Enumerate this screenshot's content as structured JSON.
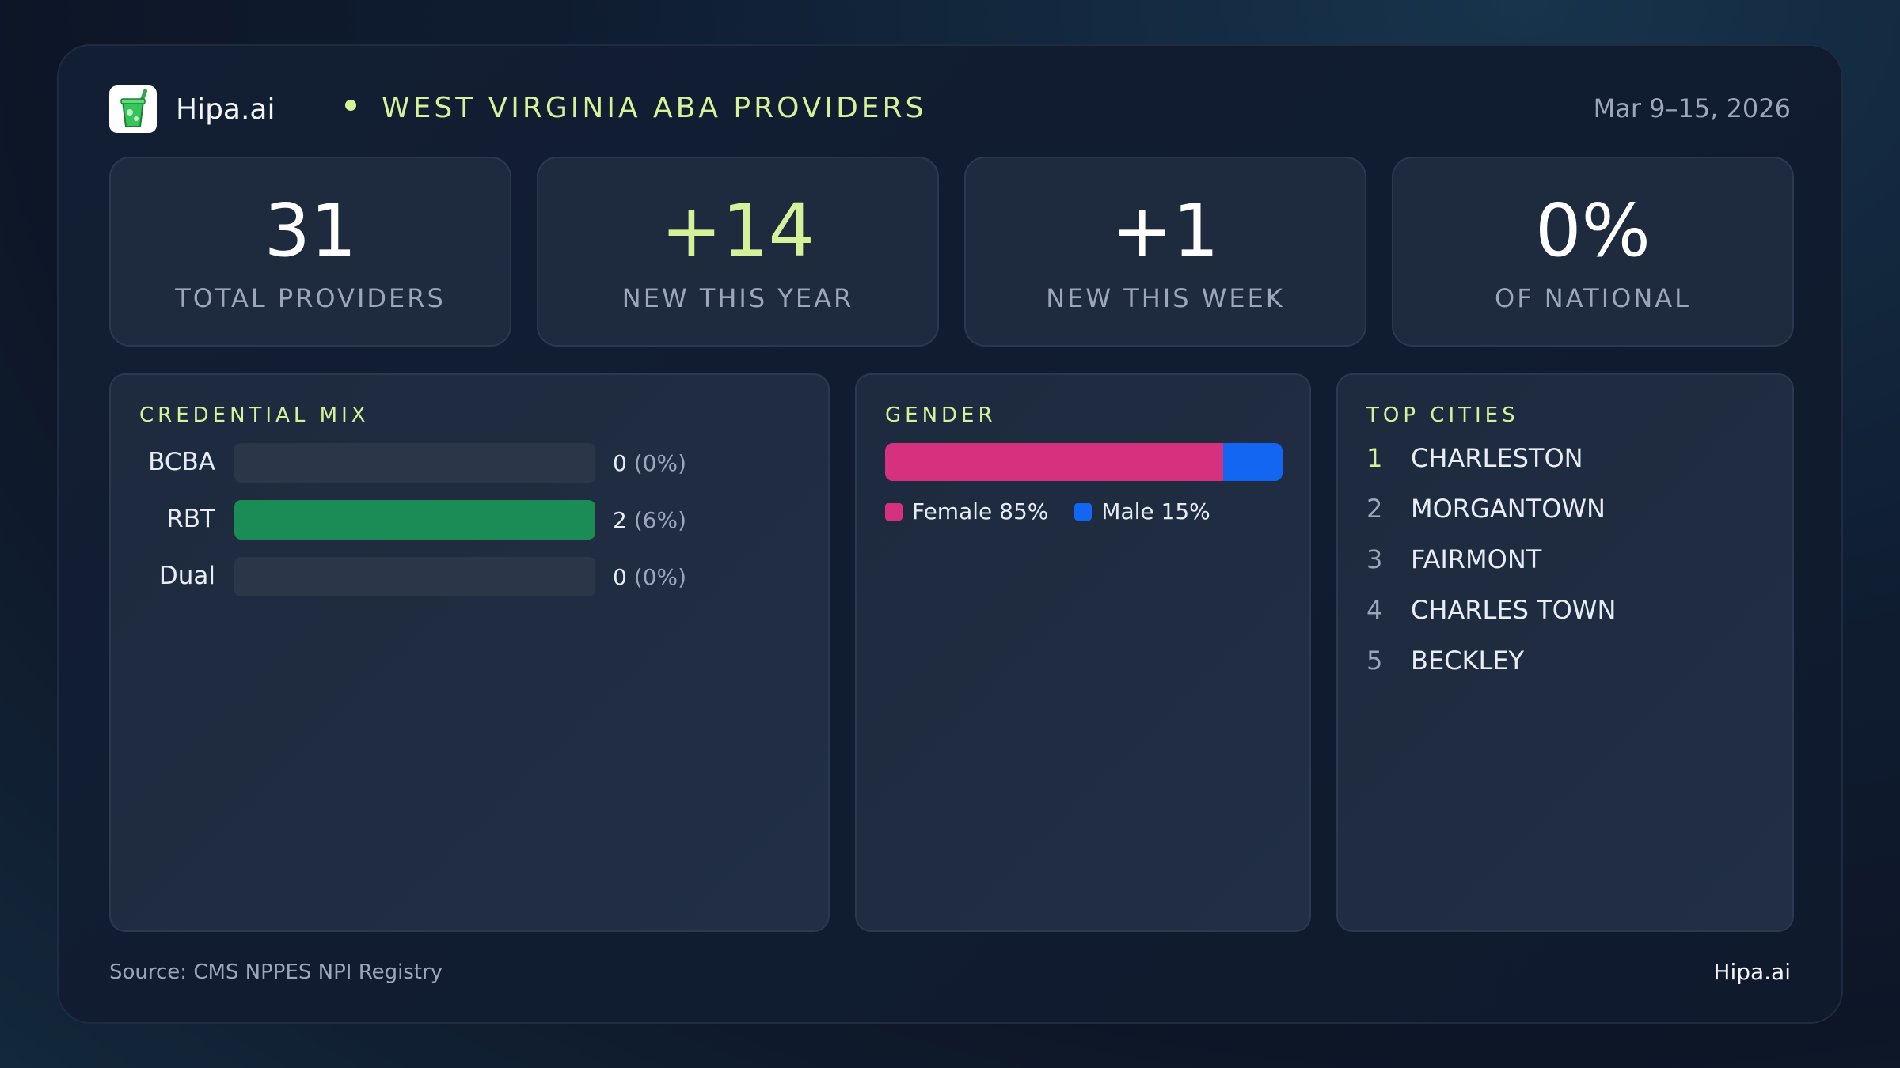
{
  "header": {
    "logo_icon": "cup-with-straw-icon",
    "brand": "Hipa.ai",
    "title": "WEST VIRGINIA ABA PROVIDERS",
    "date_range": "Mar 9–15, 2026"
  },
  "stats": [
    {
      "value": "31",
      "label": "TOTAL PROVIDERS"
    },
    {
      "value": "+14",
      "label": "NEW THIS YEAR"
    },
    {
      "value": "+1",
      "label": "NEW THIS WEEK"
    },
    {
      "value": "0%",
      "label": "OF NATIONAL"
    }
  ],
  "credential_mix": {
    "title": "CREDENTIAL MIX",
    "rows": [
      {
        "name": "BCBA",
        "count": "0",
        "pct": "(0%)",
        "fill": 0
      },
      {
        "name": "RBT",
        "count": "2",
        "pct": "(6%)",
        "fill": 1
      },
      {
        "name": "Dual",
        "count": "0",
        "pct": "(0%)",
        "fill": 0
      }
    ],
    "fill_color": "#1b8c55"
  },
  "gender": {
    "title": "GENDER",
    "female_label": "Female 85%",
    "male_label": "Male 15%",
    "female_pct": 85,
    "male_pct": 15,
    "female_color": "#d5317f",
    "male_color": "#1366f2"
  },
  "top_cities": {
    "title": "TOP CITIES",
    "items": [
      {
        "rank": "1",
        "name": "CHARLESTON"
      },
      {
        "rank": "2",
        "name": "MORGANTOWN"
      },
      {
        "rank": "3",
        "name": "FAIRMONT"
      },
      {
        "rank": "4",
        "name": "CHARLES TOWN"
      },
      {
        "rank": "5",
        "name": "BECKLEY"
      }
    ]
  },
  "footer": {
    "source": "Source: CMS NPPES NPI Registry",
    "brand": "Hipa.ai"
  },
  "colors": {
    "accent": "#d5f29a",
    "muted": "#9ba7b9"
  }
}
